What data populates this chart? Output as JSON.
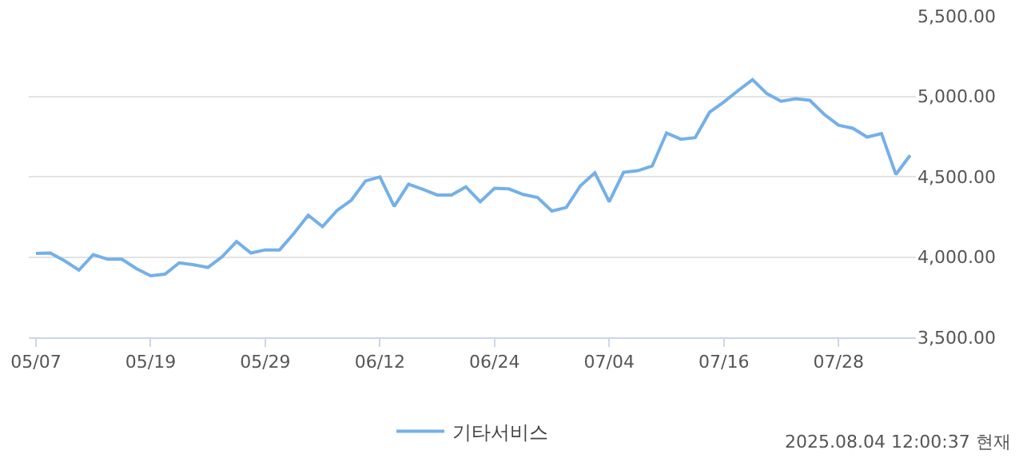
{
  "chart_data": {
    "type": "line",
    "categories": [
      "05/07",
      null,
      null,
      null,
      null,
      null,
      null,
      null,
      "05/19",
      null,
      null,
      null,
      null,
      null,
      null,
      null,
      "05/29",
      null,
      null,
      null,
      null,
      null,
      null,
      null,
      "06/12",
      null,
      null,
      null,
      null,
      null,
      null,
      null,
      "06/24",
      null,
      null,
      null,
      null,
      null,
      null,
      null,
      "07/04",
      null,
      null,
      null,
      null,
      null,
      null,
      null,
      "07/16",
      null,
      null,
      null,
      null,
      null,
      null,
      null,
      "07/28",
      null,
      null,
      null,
      null,
      null
    ],
    "series": [
      {
        "name": "기타서비스",
        "color": "#74b0e8",
        "values": [
          4022,
          4025,
          3976,
          3918,
          4015,
          3986,
          3986,
          3928,
          3883,
          3893,
          3964,
          3951,
          3935,
          4002,
          4096,
          4025,
          4044,
          4044,
          4147,
          4260,
          4189,
          4289,
          4353,
          4473,
          4498,
          4315,
          4453,
          4421,
          4386,
          4386,
          4437,
          4344,
          4428,
          4424,
          4389,
          4370,
          4286,
          4308,
          4444,
          4524,
          4344,
          4527,
          4537,
          4566,
          4772,
          4733,
          4743,
          4901,
          4965,
          5036,
          5104,
          5017,
          4969,
          4985,
          4975,
          4888,
          4820,
          4801,
          4746,
          4768,
          4514,
          4633
        ]
      }
    ],
    "ylim": [
      3500,
      5500
    ],
    "yticks": [
      {
        "value": 3500,
        "label": "3,500.00"
      },
      {
        "value": 4000,
        "label": "4,000.00"
      },
      {
        "value": 4500,
        "label": "4,500.00"
      },
      {
        "value": 5000,
        "label": "5,000.00"
      },
      {
        "value": 5500,
        "label": "5,500.00"
      }
    ],
    "grid": "y",
    "legend": "bottom",
    "marker": "none",
    "line_style": "solid",
    "annotations": [
      "2025.08.04 12:00:37 현재"
    ]
  }
}
